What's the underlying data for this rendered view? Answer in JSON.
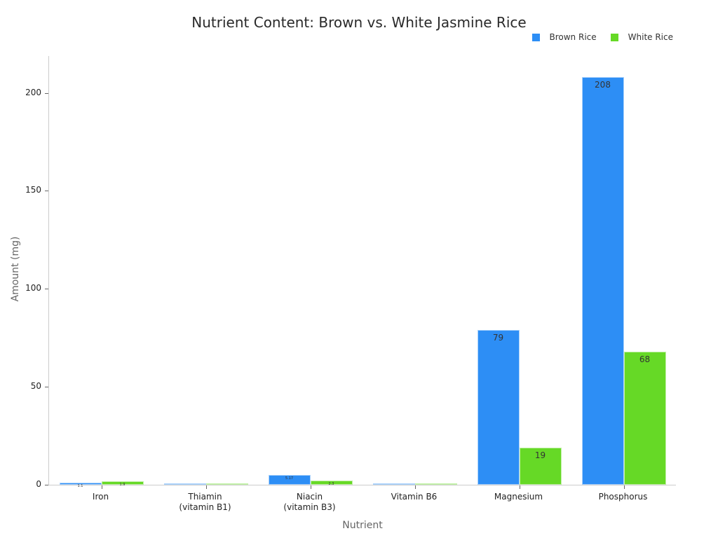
{
  "chart_data": {
    "type": "bar",
    "title": "Nutrient Content: Brown vs. White Jasmine Rice",
    "xlabel": "Nutrient",
    "ylabel": "Amount (mg)",
    "categories": [
      "Iron",
      "Thiamin\n(vitamin B1)",
      "Niacin\n(vitamin B3)",
      "Vitamin B6",
      "Magnesium",
      "Phosphorus"
    ],
    "series": [
      {
        "name": "Brown Rice",
        "color": "#2d8ef5",
        "values": [
          1.1,
          0.3,
          5.17,
          0.3,
          79,
          208
        ],
        "labels": [
          "1.1",
          "0.3",
          "5.17",
          "0.3",
          "79",
          "208"
        ]
      },
      {
        "name": "White Rice",
        "color": "#66d926",
        "values": [
          1.9,
          0.1,
          2.3,
          0.1,
          19,
          68
        ],
        "labels": [
          "1.9",
          "0.1",
          "2.3",
          "0.1",
          "19",
          "68"
        ]
      }
    ],
    "ylim": [
      0,
      219
    ],
    "yticks": [
      0,
      50,
      100,
      150,
      200
    ],
    "legend_position": "top-right",
    "grid": false
  }
}
